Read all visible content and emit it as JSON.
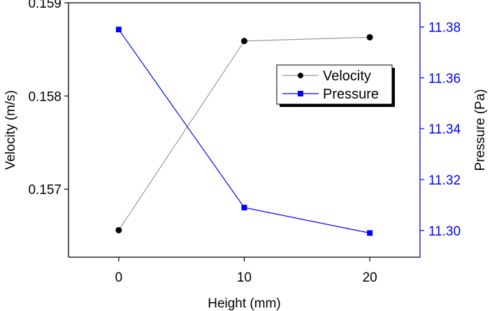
{
  "chart_data": {
    "type": "line",
    "title": "",
    "x": [
      0,
      10,
      20
    ],
    "xticks": [
      "0",
      "10",
      "20"
    ],
    "xlabel": "Height (mm)",
    "xlim": [
      -4,
      24
    ],
    "series": [
      {
        "name": "Velocity",
        "axis": "left",
        "color": "#000000",
        "line_color": "#999999",
        "marker": "circle",
        "values": [
          0.15656,
          0.15859,
          0.15863
        ]
      },
      {
        "name": "Pressure",
        "axis": "right",
        "color": "#0000ff",
        "line_color": "#0000ff",
        "marker": "square",
        "values": [
          11.379,
          11.309,
          11.299
        ]
      }
    ],
    "y_left": {
      "label": "Velocity (m/s)",
      "ticks": [
        "0.157",
        "0.158",
        "0.159"
      ],
      "tick_values": [
        0.157,
        0.158,
        0.159
      ],
      "lim": [
        0.15627,
        0.159
      ],
      "color": "#000000"
    },
    "y_right": {
      "label": "Pressure (Pa)",
      "ticks": [
        "11.30",
        "11.32",
        "11.34",
        "11.36",
        "11.38"
      ],
      "tick_values": [
        11.3,
        11.32,
        11.34,
        11.36,
        11.38
      ],
      "lim": [
        11.2895,
        11.3895
      ],
      "color": "#0000ff"
    },
    "legend": {
      "placement": "top-right",
      "entries": [
        "Velocity",
        "Pressure"
      ]
    },
    "grid": false
  }
}
